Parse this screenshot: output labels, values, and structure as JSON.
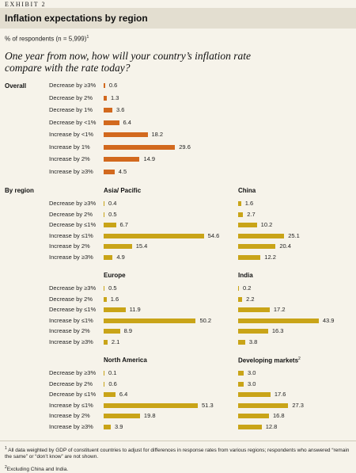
{
  "header": {
    "exhibit": "EXHIBIT 2",
    "title": "Inflation expectations by region",
    "subtitle": "% of respondents (n = 5,999)",
    "subtitle_note": "1",
    "question": "One year from now, how will your country’s inflation rate compare with the rate today?"
  },
  "labels": {
    "overall": "Overall",
    "by_region": "By region"
  },
  "colors": {
    "overall_bar": "#d2691e",
    "region_bar": "#c9a418",
    "background": "#f6f3ea",
    "title_band": "#e3ded0"
  },
  "chart_data": [
    {
      "type": "bar",
      "orientation": "horizontal",
      "id": "overall",
      "title": "Overall",
      "color": "#d2691e",
      "categories": [
        "Decrease by ≥3%",
        "Decrease by 2%",
        "Decrease by 1%",
        "Decrease by <1%",
        "Increase by <1%",
        "Increase by 1%",
        "Increase by 2%",
        "Increase by ≥3%"
      ],
      "values": [
        0.6,
        1.3,
        3.6,
        6.4,
        18.2,
        29.6,
        14.9,
        4.5
      ],
      "value_labels": [
        "0.6",
        "1.3",
        "3.6",
        "6.4",
        "18.2",
        "29.6",
        "14.9",
        "4.5"
      ]
    },
    {
      "type": "bar",
      "orientation": "horizontal",
      "id": "asia",
      "title": "Asia/ Pacific",
      "color": "#c9a418",
      "categories": [
        "Decrease by ≥3%",
        "Decrease by 2%",
        "Decrease by ≤1%",
        "Increase by ≤1%",
        "Increase by 2%",
        "Increase by ≥3%"
      ],
      "values": [
        0.4,
        0.5,
        6.7,
        54.6,
        15.4,
        4.9
      ],
      "value_labels": [
        "0.4",
        "0.5",
        "6.7",
        "54.6",
        "15.4",
        "4.9"
      ]
    },
    {
      "type": "bar",
      "orientation": "horizontal",
      "id": "china",
      "title": "China",
      "color": "#c9a418",
      "categories": [
        "Decrease by ≥3%",
        "Decrease by 2%",
        "Decrease by ≤1%",
        "Increase by ≤1%",
        "Increase by 2%",
        "Increase by ≥3%"
      ],
      "values": [
        1.6,
        2.7,
        10.2,
        25.1,
        20.4,
        12.2
      ],
      "value_labels": [
        "1.6",
        "2.7",
        "10.2",
        "25.1",
        "20.4",
        "12.2"
      ]
    },
    {
      "type": "bar",
      "orientation": "horizontal",
      "id": "europe",
      "title": "Europe",
      "color": "#c9a418",
      "categories": [
        "Decrease by ≥3%",
        "Decrease by 2%",
        "Decrease by ≤1%",
        "Increase by ≤1%",
        "Increase by 2%",
        "Increase by ≥3%"
      ],
      "values": [
        0.5,
        1.6,
        11.9,
        50.2,
        8.9,
        2.1
      ],
      "value_labels": [
        "0.5",
        "1.6",
        "11.9",
        "50.2",
        "8.9",
        "2.1"
      ]
    },
    {
      "type": "bar",
      "orientation": "horizontal",
      "id": "india",
      "title": "India",
      "color": "#c9a418",
      "categories": [
        "Decrease by ≥3%",
        "Decrease by 2%",
        "Decrease by ≤1%",
        "Increase by ≤1%",
        "Increase by 2%",
        "Increase by ≥3%"
      ],
      "values": [
        0.2,
        2.2,
        17.2,
        43.9,
        16.3,
        3.8
      ],
      "value_labels": [
        "0.2",
        "2.2",
        "17.2",
        "43.9",
        "16.3",
        "3.8"
      ]
    },
    {
      "type": "bar",
      "orientation": "horizontal",
      "id": "north_america",
      "title": "North America",
      "color": "#c9a418",
      "categories": [
        "Decrease by ≥3%",
        "Decrease by 2%",
        "Decrease by ≤1%",
        "Increase by ≤1%",
        "Increase by 2%",
        "Increase by ≥3%"
      ],
      "values": [
        0.1,
        0.6,
        6.4,
        51.3,
        19.8,
        3.9
      ],
      "value_labels": [
        "0.1",
        "0.6",
        "6.4",
        "51.3",
        "19.8",
        "3.9"
      ]
    },
    {
      "type": "bar",
      "orientation": "horizontal",
      "id": "developing",
      "title": "Developing markets",
      "title_note": "2",
      "color": "#c9a418",
      "categories": [
        "Decrease by ≥3%",
        "Decrease by 2%",
        "Decrease by ≤1%",
        "Increase by ≤1%",
        "Increase by 2%",
        "Increase by ≥3%"
      ],
      "values": [
        3.0,
        3.0,
        17.6,
        27.3,
        16.8,
        12.8
      ],
      "value_labels": [
        "3.0",
        "3.0",
        "17.6",
        "27.3",
        "16.8",
        "12.8"
      ]
    }
  ],
  "footnotes": [
    {
      "mark": "1",
      "text": "All data weighted by GDP of constituent countries to adjust for differences in response rates from various regions; respondents who answered “remain the same” or “don’t know” are not shown."
    },
    {
      "mark": "2",
      "text": "Excluding China and India."
    }
  ]
}
